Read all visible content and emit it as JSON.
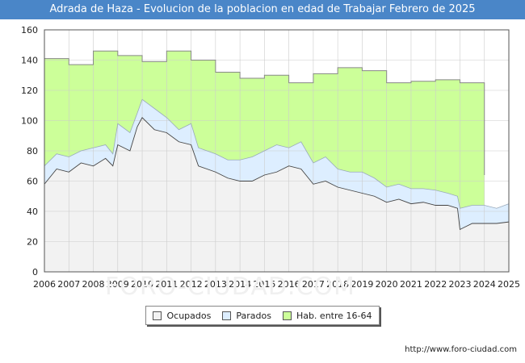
{
  "page": {
    "title": "Adrada de Haza - Evolucion de la poblacion en edad de Trabajar Febrero de 2025",
    "source": "http://www.foro-ciudad.com",
    "watermark": "FORO-CIUDAD.COM"
  },
  "legend": [
    {
      "label": "Ocupados",
      "color": "#f2f2f2"
    },
    {
      "label": "Parados",
      "color": "#ddeeff"
    },
    {
      "label": "Hab. entre 16-64",
      "color": "#ccff99"
    }
  ],
  "chart_data": {
    "type": "area",
    "title": "Adrada de Haza - Evolucion de la poblacion en edad de Trabajar Febrero de 2025",
    "xlabel": "",
    "ylabel": "",
    "xlim": [
      2006,
      2025
    ],
    "ylim": [
      0,
      160
    ],
    "yticks": [
      0,
      20,
      40,
      60,
      80,
      100,
      120,
      140,
      160
    ],
    "xticks": [
      "2006",
      "2007",
      "2008",
      "2009",
      "2010",
      "2011",
      "2012",
      "2013",
      "2014",
      "2015",
      "2016",
      "2017",
      "2018",
      "2019",
      "2020",
      "2021",
      "2022",
      "2023",
      "2024",
      "2025"
    ],
    "grid": true,
    "legend_position": "bottom",
    "colors": {
      "hab": "#ccff99",
      "parados": "#ddeeff",
      "ocupados": "#f2f2f2",
      "line": "#444444",
      "hab_line": "#888888"
    },
    "series": [
      {
        "name": "Hab. entre 16-64",
        "type": "step",
        "x": [
          2006,
          2007,
          2008,
          2009,
          2010,
          2011,
          2012,
          2013,
          2014,
          2015,
          2016,
          2017,
          2018,
          2019,
          2020,
          2021,
          2022,
          2023,
          2023.95
        ],
        "values": [
          141,
          137,
          146,
          143,
          139,
          146,
          140,
          132,
          128,
          130,
          125,
          131,
          135,
          133,
          125,
          126,
          127,
          125,
          125
        ],
        "end_x": 2024,
        "end_value": 64
      },
      {
        "name": "Parados",
        "type": "line",
        "note": "upper boundary = Ocupados + Parados",
        "x": [
          2006,
          2006.5,
          2007,
          2007.5,
          2008,
          2008.5,
          2008.8,
          2009,
          2009.5,
          2009.8,
          2010,
          2010.5,
          2011,
          2011.5,
          2012,
          2012.3,
          2013,
          2013.5,
          2014,
          2014.5,
          2015,
          2015.5,
          2016,
          2016.5,
          2017,
          2017.5,
          2018,
          2018.5,
          2019,
          2019.5,
          2020,
          2020.5,
          2021,
          2021.5,
          2022,
          2022.5,
          2022.9,
          2023,
          2023.5,
          2024,
          2024.5,
          2025
        ],
        "values": [
          70,
          78,
          76,
          80,
          82,
          84,
          78,
          98,
          92,
          105,
          114,
          108,
          102,
          94,
          98,
          82,
          78,
          74,
          74,
          76,
          80,
          84,
          82,
          86,
          72,
          76,
          68,
          66,
          66,
          62,
          56,
          58,
          55,
          55,
          54,
          52,
          50,
          42,
          44,
          44,
          42,
          45
        ]
      },
      {
        "name": "Ocupados",
        "type": "line",
        "x": [
          2006,
          2006.5,
          2007,
          2007.5,
          2008,
          2008.5,
          2008.8,
          2009,
          2009.5,
          2009.8,
          2010,
          2010.5,
          2011,
          2011.5,
          2012,
          2012.3,
          2013,
          2013.5,
          2014,
          2014.5,
          2015,
          2015.5,
          2016,
          2016.5,
          2017,
          2017.5,
          2018,
          2018.5,
          2019,
          2019.5,
          2020,
          2020.5,
          2021,
          2021.5,
          2022,
          2022.5,
          2022.9,
          2023,
          2023.5,
          2024,
          2024.5,
          2025
        ],
        "values": [
          58,
          68,
          66,
          72,
          70,
          75,
          70,
          84,
          80,
          96,
          102,
          94,
          92,
          86,
          84,
          70,
          66,
          62,
          60,
          60,
          64,
          66,
          70,
          68,
          58,
          60,
          56,
          54,
          52,
          50,
          46,
          48,
          45,
          46,
          44,
          44,
          42,
          28,
          32,
          32,
          32,
          33
        ]
      }
    ]
  }
}
